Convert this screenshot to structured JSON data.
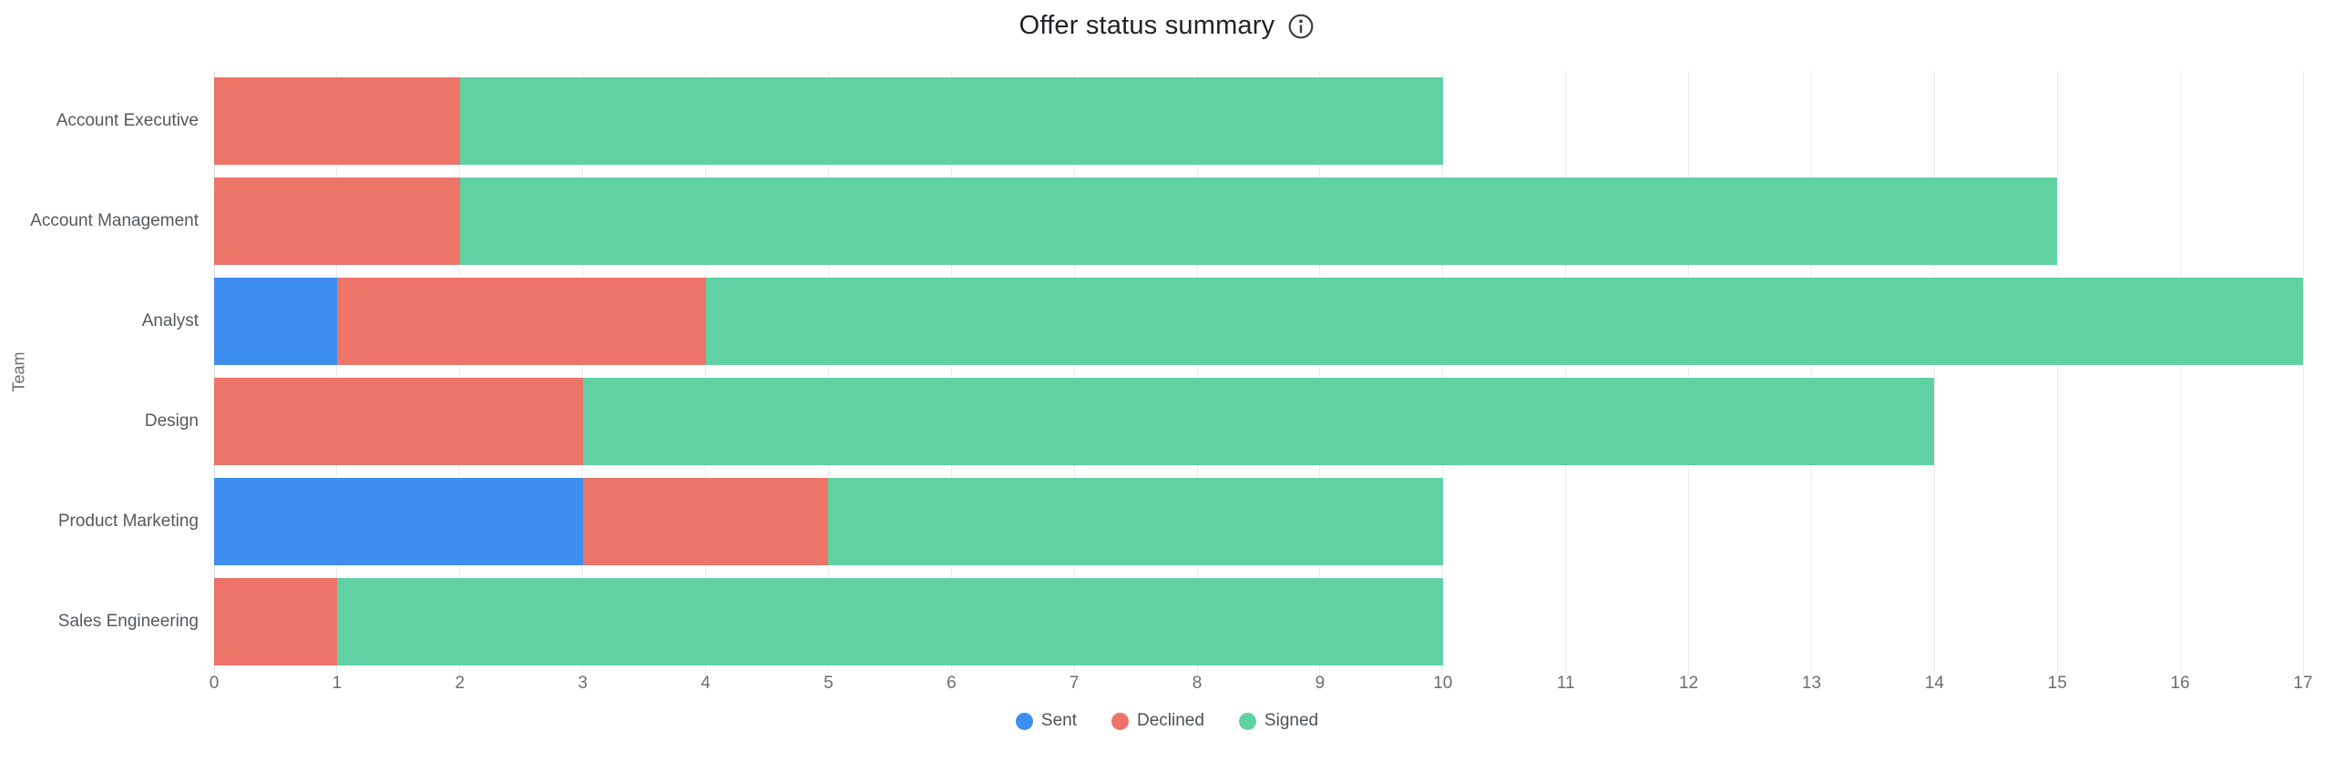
{
  "header": {
    "info_icon": "info-circle-icon"
  },
  "chart_data": {
    "type": "bar",
    "orientation": "horizontal",
    "stacked": true,
    "title": "Offer status summary",
    "xlabel": "",
    "ylabel": "Team",
    "categories": [
      "Account Executive",
      "Account Management",
      "Analyst",
      "Design",
      "Product Marketing",
      "Sales Engineering"
    ],
    "series": [
      {
        "name": "Sent",
        "color": "#3e8ef0",
        "values": [
          0,
          0,
          1,
          0,
          3,
          0
        ]
      },
      {
        "name": "Declined",
        "color": "#ed7468",
        "values": [
          2,
          2,
          3,
          3,
          2,
          1
        ]
      },
      {
        "name": "Signed",
        "color": "#5fd1a2",
        "values": [
          8,
          13,
          13,
          11,
          5,
          9
        ]
      }
    ],
    "totals": [
      10,
      15,
      17,
      14,
      10,
      10
    ],
    "xlim": [
      0,
      17
    ],
    "xticks": [
      0,
      1,
      2,
      3,
      4,
      5,
      6,
      7,
      8,
      9,
      10,
      11,
      12,
      13,
      14,
      15,
      16,
      17
    ],
    "grid": "vertical",
    "legend_position": "bottom",
    "style": {
      "gridline_color": "#ececec",
      "axis_line_color": "#d9dbde",
      "title_color": "#202328",
      "tick_label_color": "#696e73",
      "category_label_color": "#55595d",
      "legend_label_color": "#4e5256",
      "icon_color": "#3c4043",
      "background": "#ffffff"
    }
  }
}
